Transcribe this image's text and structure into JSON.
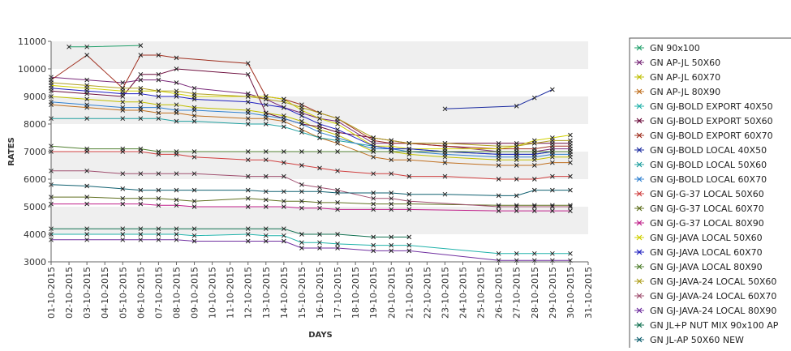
{
  "chart_data": {
    "type": "line",
    "title": "",
    "xlabel": "DAYS",
    "ylabel": "RATES",
    "ylim": [
      3000,
      11000
    ],
    "yticks": [
      3000,
      4000,
      5000,
      6000,
      7000,
      8000,
      9000,
      10000,
      11000
    ],
    "grid": "alternating-horizontal-bands",
    "legend_position": "right",
    "categories": [
      "01-10-2015",
      "02-10-2015",
      "03-10-2015",
      "04-10-2015",
      "05-10-2015",
      "06-10-2015",
      "07-10-2015",
      "08-10-2015",
      "09-10-2015",
      "10-10-2015",
      "11-10-2015",
      "12-10-2015",
      "13-10-2015",
      "14-10-2015",
      "15-10-2015",
      "16-10-2015",
      "17-10-2015",
      "18-10-2015",
      "19-10-2015",
      "20-10-2015",
      "21-10-2015",
      "22-10-2015",
      "23-10-2015",
      "24-10-2015",
      "25-10-2015",
      "26-10-2015",
      "27-10-2015",
      "28-10-2015",
      "29-10-2015",
      "30-10-2015",
      "31-10-2015"
    ],
    "series": [
      {
        "name": "GN 90x100",
        "color": "#22a06b",
        "values": [
          null,
          10800,
          10800,
          null,
          null,
          10850,
          null,
          null,
          null,
          null,
          null,
          null,
          null,
          null,
          null,
          null,
          null,
          null,
          null,
          null,
          null,
          null,
          null,
          null,
          null,
          null,
          null,
          null,
          null,
          null,
          null
        ]
      },
      {
        "name": "GN AP-JL 50X60",
        "color": "#7a2a7a",
        "values": [
          9700,
          null,
          9600,
          null,
          9500,
          9600,
          9600,
          9500,
          9300,
          null,
          null,
          9100,
          8900,
          8600,
          8400,
          8200,
          8100,
          null,
          7300,
          7300,
          7300,
          null,
          7200,
          null,
          null,
          7000,
          7000,
          7000,
          7100,
          7100,
          null
        ]
      },
      {
        "name": "GN AP-JL 60X70",
        "color": "#bfbf00",
        "values": [
          9000,
          null,
          8900,
          null,
          8800,
          8800,
          8700,
          8700,
          8600,
          null,
          null,
          8500,
          8400,
          8300,
          8100,
          7800,
          7600,
          null,
          7000,
          7000,
          6900,
          null,
          6800,
          null,
          null,
          6700,
          6700,
          6700,
          6800,
          6800,
          null
        ]
      },
      {
        "name": "GN AP-JL 80X90",
        "color": "#c07020",
        "values": [
          8700,
          null,
          8600,
          null,
          8500,
          8500,
          8400,
          8400,
          8300,
          null,
          null,
          8200,
          8200,
          8100,
          7800,
          7500,
          7300,
          null,
          6800,
          6700,
          6700,
          null,
          6600,
          null,
          null,
          6500,
          6500,
          6500,
          6600,
          6600,
          null
        ]
      },
      {
        "name": "GN GJ-BOLD EXPORT 40X50",
        "color": "#20b2aa",
        "values": [
          4000,
          null,
          4000,
          null,
          4000,
          4000,
          4000,
          4000,
          3950,
          null,
          null,
          4000,
          3950,
          3950,
          3700,
          3700,
          3650,
          null,
          3600,
          3600,
          3600,
          null,
          null,
          null,
          null,
          3300,
          3300,
          3300,
          3300,
          3300,
          null
        ]
      },
      {
        "name": "GN GJ-BOLD EXPORT 50X60",
        "color": "#6a0a3a",
        "values": [
          9200,
          null,
          9100,
          null,
          9000,
          9800,
          9800,
          10000,
          null,
          null,
          null,
          9800,
          8400,
          8200,
          8000,
          7900,
          7700,
          null,
          7500,
          7400,
          7300,
          null,
          7300,
          null,
          null,
          7300,
          7300,
          7300,
          7300,
          7300,
          null
        ]
      },
      {
        "name": "GN GJ-BOLD EXPORT 60X70",
        "color": "#a03020",
        "values": [
          9600,
          null,
          10500,
          null,
          9300,
          10500,
          10500,
          10400,
          null,
          null,
          null,
          10200,
          9000,
          8900,
          8700,
          8400,
          8200,
          null,
          7400,
          7300,
          7300,
          null,
          7200,
          null,
          null,
          7100,
          7100,
          7100,
          7200,
          7200,
          null
        ]
      },
      {
        "name": "GN GJ-BOLD LOCAL 40X50",
        "color": "#1a2aa0",
        "values": [
          null,
          null,
          null,
          null,
          null,
          null,
          null,
          null,
          null,
          null,
          null,
          null,
          null,
          null,
          null,
          null,
          null,
          null,
          null,
          null,
          null,
          null,
          8550,
          null,
          null,
          null,
          8650,
          8950,
          9250,
          null,
          null
        ]
      },
      {
        "name": "GN GJ-BOLD LOCAL 50X60",
        "color": "#20a0a0",
        "values": [
          8200,
          null,
          8200,
          null,
          8200,
          8200,
          8200,
          8100,
          8100,
          null,
          null,
          8000,
          8000,
          7900,
          7700,
          7500,
          7400,
          null,
          7200,
          7100,
          7100,
          null,
          7000,
          null,
          null,
          6900,
          6900,
          6900,
          7000,
          7000,
          null
        ]
      },
      {
        "name": "GN GJ-BOLD LOCAL 60X70",
        "color": "#3080d0",
        "values": [
          8800,
          null,
          8700,
          null,
          8600,
          8600,
          8600,
          8500,
          8500,
          null,
          null,
          8400,
          8300,
          8200,
          8000,
          7700,
          7500,
          null,
          7100,
          7100,
          7000,
          null,
          6900,
          null,
          null,
          6800,
          6800,
          6800,
          6900,
          6900,
          null
        ]
      },
      {
        "name": "GN GJ-G-37 LOCAL 50X60",
        "color": "#d04040",
        "values": [
          7000,
          null,
          7000,
          null,
          7000,
          7000,
          6900,
          6900,
          6800,
          null,
          null,
          6700,
          6700,
          6600,
          6500,
          6400,
          6300,
          null,
          6200,
          6200,
          6100,
          null,
          6100,
          null,
          null,
          6000,
          6000,
          6000,
          6100,
          6100,
          null
        ]
      },
      {
        "name": "GN GJ-G-37 LOCAL 60X70",
        "color": "#607020",
        "values": [
          5350,
          null,
          5350,
          null,
          5300,
          5300,
          5300,
          5250,
          5200,
          null,
          null,
          5300,
          5250,
          5200,
          5200,
          5150,
          5150,
          null,
          5100,
          5100,
          5100,
          null,
          null,
          null,
          null,
          5050,
          5050,
          5050,
          5050,
          5050,
          null
        ]
      },
      {
        "name": "GN GJ-G-37 LOCAL 80X90",
        "color": "#c0208a",
        "values": [
          5100,
          null,
          5100,
          null,
          5100,
          5100,
          5050,
          5050,
          5000,
          null,
          null,
          5000,
          5000,
          5000,
          4950,
          4950,
          4900,
          null,
          4900,
          4900,
          4900,
          null,
          null,
          null,
          null,
          4850,
          4850,
          4850,
          4850,
          4850,
          null
        ]
      },
      {
        "name": "GN GJ-JAVA LOCAL 50X60",
        "color": "#d0d000",
        "values": [
          9400,
          null,
          9300,
          null,
          9200,
          9200,
          9200,
          9100,
          9000,
          null,
          null,
          9000,
          9000,
          8900,
          8500,
          8200,
          8000,
          null,
          7200,
          7200,
          7100,
          null,
          7100,
          null,
          null,
          7100,
          7200,
          7400,
          7500,
          7600,
          null
        ]
      },
      {
        "name": "GN GJ-JAVA LOCAL 60X70",
        "color": "#2020c0",
        "values": [
          9300,
          null,
          9200,
          null,
          9100,
          9100,
          9000,
          9000,
          8900,
          null,
          null,
          8800,
          8700,
          8600,
          8300,
          8000,
          7800,
          null,
          7200,
          7100,
          7100,
          null,
          7000,
          null,
          null,
          6900,
          6900,
          6900,
          7000,
          7000,
          null
        ]
      },
      {
        "name": "GN GJ-JAVA LOCAL 80X90",
        "color": "#508030",
        "values": [
          7200,
          null,
          7100,
          null,
          7100,
          7100,
          7000,
          7000,
          7000,
          null,
          null,
          7000,
          7000,
          7000,
          7000,
          7000,
          7000,
          null,
          7000,
          7000,
          7000,
          null,
          7000,
          null,
          null,
          7000,
          7000,
          7000,
          7000,
          7000,
          null
        ]
      },
      {
        "name": "GN GJ-JAVA-24 LOCAL 50X60",
        "color": "#b0a020",
        "values": [
          9500,
          null,
          9400,
          null,
          9300,
          9300,
          9200,
          9200,
          9100,
          null,
          null,
          9000,
          8900,
          8800,
          8600,
          8400,
          8200,
          null,
          7500,
          7400,
          7300,
          null,
          7300,
          null,
          null,
          7200,
          7200,
          7300,
          7400,
          7400,
          null
        ]
      },
      {
        "name": "GN GJ-JAVA-24 LOCAL 60X70",
        "color": "#a05070",
        "values": [
          6300,
          null,
          6300,
          null,
          6200,
          6200,
          6200,
          6200,
          6200,
          null,
          null,
          6100,
          6100,
          6100,
          5800,
          5700,
          5600,
          null,
          5300,
          5300,
          5200,
          null,
          null,
          null,
          null,
          5000,
          5000,
          5000,
          5000,
          5000,
          null
        ]
      },
      {
        "name": "GN GJ-JAVA-24 LOCAL 80X90",
        "color": "#7030a0",
        "values": [
          3800,
          null,
          3800,
          null,
          3800,
          3800,
          3800,
          3800,
          3750,
          null,
          null,
          3750,
          3750,
          3750,
          3500,
          3500,
          3500,
          null,
          3400,
          3400,
          3400,
          null,
          null,
          null,
          null,
          3050,
          3050,
          3050,
          3050,
          3050,
          null
        ]
      },
      {
        "name": "GN JL+P NUT MIX 90x100 AP",
        "color": "#107050",
        "values": [
          4200,
          null,
          4200,
          null,
          4200,
          4200,
          4200,
          4200,
          4200,
          null,
          null,
          4200,
          4200,
          4200,
          4000,
          4000,
          4000,
          null,
          3900,
          3900,
          3900,
          null,
          null,
          null,
          null,
          null,
          null,
          null,
          null,
          null,
          null
        ]
      },
      {
        "name": "GN JL-AP 50X60 NEW",
        "color": "#106070",
        "values": [
          5800,
          null,
          5750,
          null,
          5650,
          5600,
          5600,
          5600,
          5600,
          null,
          null,
          5600,
          5550,
          5550,
          5550,
          5550,
          5500,
          null,
          5500,
          5500,
          5450,
          null,
          5450,
          null,
          null,
          5400,
          5400,
          5600,
          5600,
          5600,
          null
        ]
      }
    ]
  }
}
